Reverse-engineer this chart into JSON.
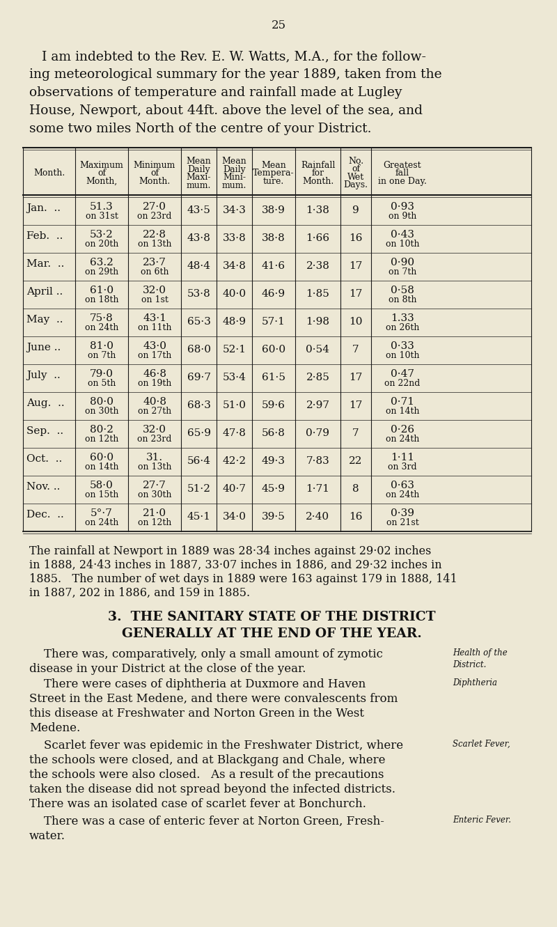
{
  "bg_color": "#ede8d5",
  "page_number": "25",
  "intro_text": [
    "   I am indebted to the Rev. E. W. Watts, M.A., for the follow-",
    "ing meteorological summary for the year 1889, taken from the",
    "observations of temperature and rainfall made at Lugley",
    "House, Newport, about 44ft. above the level of the sea, and",
    "some two miles North of the centre of your District."
  ],
  "table_headers": [
    "Month.",
    "Maximum\nof\nMonth,",
    "Minimum\nof\nMonth.",
    "Mean\nDaily\nMaxi-\nmum.",
    "Mean\nDaily\nMini-\nmum.",
    "Mean\nTempera-\nture.",
    "Rainfall\nfor\nMonth.",
    "No.\nof\nWet\nDays.",
    "Greatest\nfall\nin one Day."
  ],
  "table_data": [
    [
      "Jan.  ..",
      "51.3",
      "on 31st",
      "27·0",
      "on 23rd",
      "43·5",
      "34·3",
      "38·9",
      "1·38",
      "9",
      "0·93",
      "on 9th"
    ],
    [
      "Feb.  ..",
      "53·2",
      "on 20th",
      "22·8",
      "on 13th",
      "43·8",
      "33·8",
      "38·8",
      "1·66",
      "16",
      "0·43",
      "on 10th"
    ],
    [
      "Mar.  ..",
      "63.2",
      "on 29th",
      "23·7",
      "on 6th",
      "48·4",
      "34·8",
      "41·6",
      "2·38",
      "17",
      "0·90",
      "on 7th"
    ],
    [
      "April ..",
      "61·0",
      "on 18th",
      "32·0",
      "on 1st",
      "53·8",
      "40·0",
      "46·9",
      "1·85",
      "17",
      "0·58",
      "on 8th"
    ],
    [
      "May  ..",
      "75·8",
      "on 24th",
      "43·1",
      "on 11th",
      "65·3",
      "48·9",
      "57·1",
      "1·98",
      "10",
      "1.33",
      "on 26th"
    ],
    [
      "June ..",
      "81·0",
      "on 7th",
      "43·0",
      "on 17th",
      "68·0",
      "52·1",
      "60·0",
      "0·54",
      "7",
      "0·33",
      "on 10th"
    ],
    [
      "July  ..",
      "79·0",
      "on 5th",
      "46·8",
      "on 19th",
      "69·7",
      "53·4",
      "61·5",
      "2·85",
      "17",
      "0·47",
      "on 22nd"
    ],
    [
      "Aug.  ..",
      "80·0",
      "on 30th",
      "40·8",
      "on 27th",
      "68·3",
      "51·0",
      "59·6",
      "2·97",
      "17",
      "0·71",
      "on 14th"
    ],
    [
      "Sep.  ..",
      "80·2",
      "on 12th",
      "32·0",
      "on 23rd",
      "65·9",
      "47·8",
      "56·8",
      "0·79",
      "7",
      "0·26",
      "on 24th"
    ],
    [
      "Oct.  ..",
      "60·0",
      "on 14th",
      "31.",
      "on 13th",
      "56·4",
      "42·2",
      "49·3",
      "7·83",
      "22",
      "1·11",
      "on 3rd"
    ],
    [
      "Nov. ..",
      "58·0",
      "on 15th",
      "27·7",
      "on 30th",
      "51·2",
      "40·7",
      "45·9",
      "1·71",
      "8",
      "0·63",
      "on 24th"
    ],
    [
      "Dec.  ..",
      "5°·7",
      "on 24th",
      "21·0",
      "on 12th",
      "45·1",
      "34·0",
      "39·5",
      "2·40",
      "16",
      "0·39",
      "on 21st"
    ]
  ],
  "rainfall_text": [
    "The rainfall at Newport in 1889 was 28·34 inches against 29·02 inches",
    "in 1888, 24·43 inches in 1887, 33·07 inches in 1886, and 29·32 inches in",
    "1885.   The number of wet days in 1889 were 163 against 179 in 1888, 141",
    "in 1887, 202 in 1886, and 159 in 1885."
  ],
  "section_heading1": "3.  THE SANITARY STATE OF THE DISTRICT",
  "section_heading2": "GENERALLY AT THE END OF THE YEAR.",
  "para1_line1": "    There was, comparatively, only a small amount of zymotic",
  "para1_line2": "disease in your District at the close of the year.",
  "para1_margin": "Health of the\nDistrict.",
  "para2_lines": [
    "    There were cases of diphtheria at Duxmore and Haven",
    "Street in the East Medene, and there were convalescents from",
    "this disease at Freshwater and Norton Green in the West",
    "Medene."
  ],
  "para2_margin": "Diphtheria",
  "para3_lines": [
    "    Scarlet fever was epidemic in the Freshwater District, where",
    "the schools were closed, and at Blackgang and Chale, where",
    "the schools were also closed.   As a result of the precautions",
    "taken the disease did not spread beyond the infected districts.",
    "There was an isolated case of scarlet fever at Bonchurch."
  ],
  "para3_margin": "Scarlet Fever,",
  "para4_lines": [
    "    There was a case of enteric fever at Norton Green, Fresh-",
    "water."
  ],
  "para4_margin": "Enteric Fever."
}
